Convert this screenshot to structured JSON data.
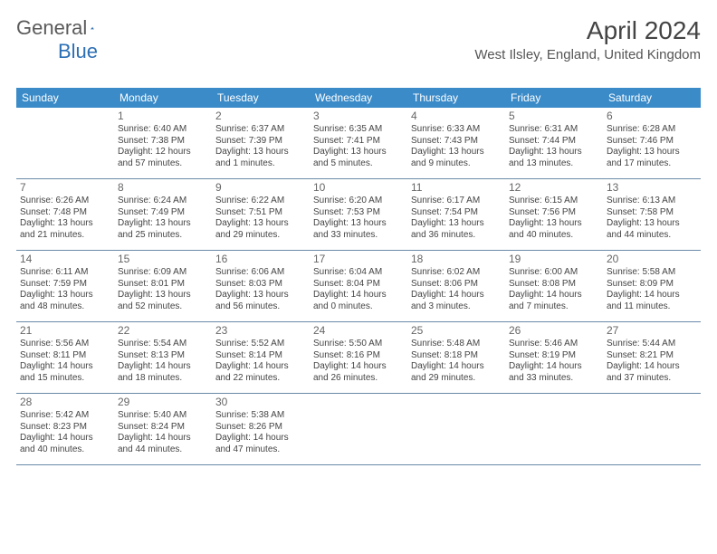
{
  "logo": {
    "text_general": "General",
    "text_blue": "Blue"
  },
  "title": "April 2024",
  "location": "West Ilsley, England, United Kingdom",
  "colors": {
    "header_bg": "#3b8bc9",
    "header_text": "#ffffff",
    "border": "#6a8aa8",
    "body_text": "#444444",
    "daynum_text": "#666666",
    "logo_gray": "#5a5a5a",
    "logo_blue": "#2c6fb5",
    "background": "#ffffff"
  },
  "day_headers": [
    "Sunday",
    "Monday",
    "Tuesday",
    "Wednesday",
    "Thursday",
    "Friday",
    "Saturday"
  ],
  "weeks": [
    [
      {
        "day": "",
        "sunrise": "",
        "sunset": "",
        "daylight1": "",
        "daylight2": ""
      },
      {
        "day": "1",
        "sunrise": "Sunrise: 6:40 AM",
        "sunset": "Sunset: 7:38 PM",
        "daylight1": "Daylight: 12 hours",
        "daylight2": "and 57 minutes."
      },
      {
        "day": "2",
        "sunrise": "Sunrise: 6:37 AM",
        "sunset": "Sunset: 7:39 PM",
        "daylight1": "Daylight: 13 hours",
        "daylight2": "and 1 minutes."
      },
      {
        "day": "3",
        "sunrise": "Sunrise: 6:35 AM",
        "sunset": "Sunset: 7:41 PM",
        "daylight1": "Daylight: 13 hours",
        "daylight2": "and 5 minutes."
      },
      {
        "day": "4",
        "sunrise": "Sunrise: 6:33 AM",
        "sunset": "Sunset: 7:43 PM",
        "daylight1": "Daylight: 13 hours",
        "daylight2": "and 9 minutes."
      },
      {
        "day": "5",
        "sunrise": "Sunrise: 6:31 AM",
        "sunset": "Sunset: 7:44 PM",
        "daylight1": "Daylight: 13 hours",
        "daylight2": "and 13 minutes."
      },
      {
        "day": "6",
        "sunrise": "Sunrise: 6:28 AM",
        "sunset": "Sunset: 7:46 PM",
        "daylight1": "Daylight: 13 hours",
        "daylight2": "and 17 minutes."
      }
    ],
    [
      {
        "day": "7",
        "sunrise": "Sunrise: 6:26 AM",
        "sunset": "Sunset: 7:48 PM",
        "daylight1": "Daylight: 13 hours",
        "daylight2": "and 21 minutes."
      },
      {
        "day": "8",
        "sunrise": "Sunrise: 6:24 AM",
        "sunset": "Sunset: 7:49 PM",
        "daylight1": "Daylight: 13 hours",
        "daylight2": "and 25 minutes."
      },
      {
        "day": "9",
        "sunrise": "Sunrise: 6:22 AM",
        "sunset": "Sunset: 7:51 PM",
        "daylight1": "Daylight: 13 hours",
        "daylight2": "and 29 minutes."
      },
      {
        "day": "10",
        "sunrise": "Sunrise: 6:20 AM",
        "sunset": "Sunset: 7:53 PM",
        "daylight1": "Daylight: 13 hours",
        "daylight2": "and 33 minutes."
      },
      {
        "day": "11",
        "sunrise": "Sunrise: 6:17 AM",
        "sunset": "Sunset: 7:54 PM",
        "daylight1": "Daylight: 13 hours",
        "daylight2": "and 36 minutes."
      },
      {
        "day": "12",
        "sunrise": "Sunrise: 6:15 AM",
        "sunset": "Sunset: 7:56 PM",
        "daylight1": "Daylight: 13 hours",
        "daylight2": "and 40 minutes."
      },
      {
        "day": "13",
        "sunrise": "Sunrise: 6:13 AM",
        "sunset": "Sunset: 7:58 PM",
        "daylight1": "Daylight: 13 hours",
        "daylight2": "and 44 minutes."
      }
    ],
    [
      {
        "day": "14",
        "sunrise": "Sunrise: 6:11 AM",
        "sunset": "Sunset: 7:59 PM",
        "daylight1": "Daylight: 13 hours",
        "daylight2": "and 48 minutes."
      },
      {
        "day": "15",
        "sunrise": "Sunrise: 6:09 AM",
        "sunset": "Sunset: 8:01 PM",
        "daylight1": "Daylight: 13 hours",
        "daylight2": "and 52 minutes."
      },
      {
        "day": "16",
        "sunrise": "Sunrise: 6:06 AM",
        "sunset": "Sunset: 8:03 PM",
        "daylight1": "Daylight: 13 hours",
        "daylight2": "and 56 minutes."
      },
      {
        "day": "17",
        "sunrise": "Sunrise: 6:04 AM",
        "sunset": "Sunset: 8:04 PM",
        "daylight1": "Daylight: 14 hours",
        "daylight2": "and 0 minutes."
      },
      {
        "day": "18",
        "sunrise": "Sunrise: 6:02 AM",
        "sunset": "Sunset: 8:06 PM",
        "daylight1": "Daylight: 14 hours",
        "daylight2": "and 3 minutes."
      },
      {
        "day": "19",
        "sunrise": "Sunrise: 6:00 AM",
        "sunset": "Sunset: 8:08 PM",
        "daylight1": "Daylight: 14 hours",
        "daylight2": "and 7 minutes."
      },
      {
        "day": "20",
        "sunrise": "Sunrise: 5:58 AM",
        "sunset": "Sunset: 8:09 PM",
        "daylight1": "Daylight: 14 hours",
        "daylight2": "and 11 minutes."
      }
    ],
    [
      {
        "day": "21",
        "sunrise": "Sunrise: 5:56 AM",
        "sunset": "Sunset: 8:11 PM",
        "daylight1": "Daylight: 14 hours",
        "daylight2": "and 15 minutes."
      },
      {
        "day": "22",
        "sunrise": "Sunrise: 5:54 AM",
        "sunset": "Sunset: 8:13 PM",
        "daylight1": "Daylight: 14 hours",
        "daylight2": "and 18 minutes."
      },
      {
        "day": "23",
        "sunrise": "Sunrise: 5:52 AM",
        "sunset": "Sunset: 8:14 PM",
        "daylight1": "Daylight: 14 hours",
        "daylight2": "and 22 minutes."
      },
      {
        "day": "24",
        "sunrise": "Sunrise: 5:50 AM",
        "sunset": "Sunset: 8:16 PM",
        "daylight1": "Daylight: 14 hours",
        "daylight2": "and 26 minutes."
      },
      {
        "day": "25",
        "sunrise": "Sunrise: 5:48 AM",
        "sunset": "Sunset: 8:18 PM",
        "daylight1": "Daylight: 14 hours",
        "daylight2": "and 29 minutes."
      },
      {
        "day": "26",
        "sunrise": "Sunrise: 5:46 AM",
        "sunset": "Sunset: 8:19 PM",
        "daylight1": "Daylight: 14 hours",
        "daylight2": "and 33 minutes."
      },
      {
        "day": "27",
        "sunrise": "Sunrise: 5:44 AM",
        "sunset": "Sunset: 8:21 PM",
        "daylight1": "Daylight: 14 hours",
        "daylight2": "and 37 minutes."
      }
    ],
    [
      {
        "day": "28",
        "sunrise": "Sunrise: 5:42 AM",
        "sunset": "Sunset: 8:23 PM",
        "daylight1": "Daylight: 14 hours",
        "daylight2": "and 40 minutes."
      },
      {
        "day": "29",
        "sunrise": "Sunrise: 5:40 AM",
        "sunset": "Sunset: 8:24 PM",
        "daylight1": "Daylight: 14 hours",
        "daylight2": "and 44 minutes."
      },
      {
        "day": "30",
        "sunrise": "Sunrise: 5:38 AM",
        "sunset": "Sunset: 8:26 PM",
        "daylight1": "Daylight: 14 hours",
        "daylight2": "and 47 minutes."
      },
      {
        "day": "",
        "sunrise": "",
        "sunset": "",
        "daylight1": "",
        "daylight2": ""
      },
      {
        "day": "",
        "sunrise": "",
        "sunset": "",
        "daylight1": "",
        "daylight2": ""
      },
      {
        "day": "",
        "sunrise": "",
        "sunset": "",
        "daylight1": "",
        "daylight2": ""
      },
      {
        "day": "",
        "sunrise": "",
        "sunset": "",
        "daylight1": "",
        "daylight2": ""
      }
    ]
  ]
}
